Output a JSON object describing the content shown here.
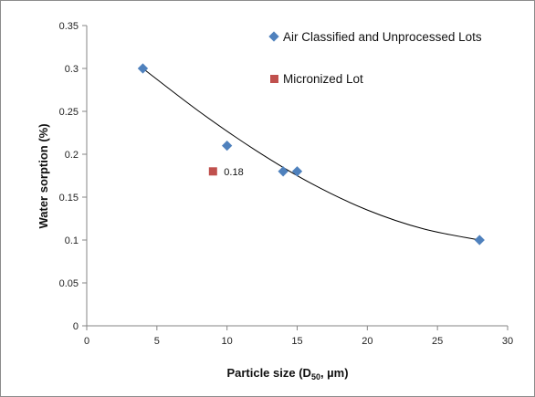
{
  "chart_data": {
    "type": "scatter",
    "xlabel": "Particle size (D",
    "xlabel_sub": "50",
    "xlabel_tail": ", µm)",
    "ylabel": "Water sorption (%)",
    "xlim": [
      0,
      30
    ],
    "ylim": [
      0,
      0.35
    ],
    "x_ticks": [
      "0",
      "5",
      "10",
      "15",
      "20",
      "25",
      "30"
    ],
    "y_ticks": [
      "0",
      "0.05",
      "0.1",
      "0.15",
      "0.2",
      "0.25",
      "0.3",
      "0.35"
    ],
    "grid": false,
    "legend_position": "top-right",
    "series": [
      {
        "name": "Air Classified and Unprocessed Lots",
        "marker": "diamond",
        "color": "#4f81bd",
        "points": [
          {
            "x": 4,
            "y": 0.3
          },
          {
            "x": 10,
            "y": 0.21
          },
          {
            "x": 14,
            "y": 0.18
          },
          {
            "x": 15,
            "y": 0.18
          },
          {
            "x": 28,
            "y": 0.1
          }
        ]
      },
      {
        "name": "Micronized Lot",
        "marker": "square",
        "color": "#c0504d",
        "points": [
          {
            "x": 9,
            "y": 0.18,
            "label": "0.18"
          }
        ]
      }
    ],
    "trendline": {
      "type": "polynomial",
      "color": "#000000",
      "points": [
        {
          "x": 4,
          "y": 0.3
        },
        {
          "x": 8,
          "y": 0.25
        },
        {
          "x": 12,
          "y": 0.205
        },
        {
          "x": 16,
          "y": 0.166
        },
        {
          "x": 20,
          "y": 0.135
        },
        {
          "x": 24,
          "y": 0.113
        },
        {
          "x": 28,
          "y": 0.1
        }
      ]
    }
  }
}
